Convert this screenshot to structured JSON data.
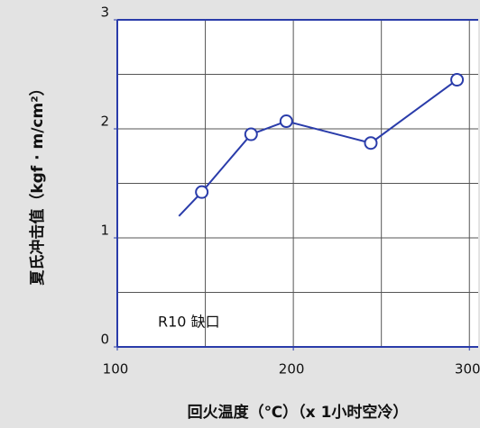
{
  "chart_data": {
    "type": "line",
    "x_label": "回火温度（℃）（x 1小时空冷）",
    "y_label": "夏氏冲击值（kgf · m/cm²）",
    "annotation": "R10 缺口",
    "x": [
      135,
      148,
      176,
      196,
      244,
      293
    ],
    "series": [
      {
        "color": "#2a3caa",
        "values": [
          1.2,
          1.42,
          1.95,
          2.07,
          1.87,
          2.45
        ],
        "markers": [
          false,
          true,
          true,
          true,
          true,
          true
        ]
      }
    ],
    "xlim": [
      100,
      305
    ],
    "xticks": [
      100,
      200,
      300
    ],
    "xgrid": [
      150,
      200,
      250,
      300
    ],
    "ylim": [
      0,
      3
    ],
    "yticks": [
      0,
      1,
      2,
      3
    ],
    "ygrid": [
      0.5,
      1,
      1.5,
      2,
      2.5
    ],
    "grid": true
  }
}
